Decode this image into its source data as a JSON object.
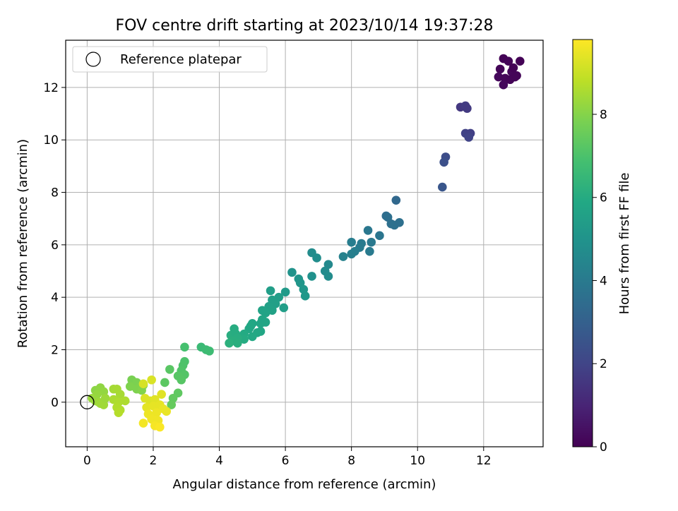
{
  "chart_data": {
    "type": "scatter",
    "title": "FOV centre drift starting at 2023/10/14 19:37:28",
    "xlabel": "Angular distance from reference (arcmin)",
    "ylabel": "Rotation from reference (arcmin)",
    "xlim": [
      -0.65,
      13.8
    ],
    "ylim": [
      -1.7,
      13.8
    ],
    "xticks": [
      "0",
      "2",
      "4",
      "6",
      "8",
      "10",
      "12"
    ],
    "yticks": [
      "0",
      "2",
      "4",
      "6",
      "8",
      "10",
      "12"
    ],
    "grid": true,
    "legend": {
      "position": "top-left",
      "entries": [
        "Reference platepar"
      ]
    },
    "reference_point": {
      "x": 0,
      "y": 0
    },
    "colorbar": {
      "label": "Hours from first FF file",
      "range": [
        0,
        9.8
      ],
      "ticks": [
        "0",
        "2",
        "4",
        "6",
        "8"
      ],
      "colormap": "viridis"
    },
    "series": [
      {
        "points": [
          {
            "x": 12.6,
            "y": 13.1,
            "h": 0.05
          },
          {
            "x": 12.75,
            "y": 13.0,
            "h": 0.1
          },
          {
            "x": 13.1,
            "y": 13.0,
            "h": 0.05
          },
          {
            "x": 12.5,
            "y": 12.7,
            "h": 0.1
          },
          {
            "x": 12.85,
            "y": 12.6,
            "h": 0.15
          },
          {
            "x": 12.95,
            "y": 12.4,
            "h": 0.1
          },
          {
            "x": 12.45,
            "y": 12.4,
            "h": 0.2
          },
          {
            "x": 12.65,
            "y": 12.35,
            "h": 0.15
          },
          {
            "x": 12.8,
            "y": 12.3,
            "h": 0.1
          },
          {
            "x": 12.6,
            "y": 12.1,
            "h": 0.2
          },
          {
            "x": 12.9,
            "y": 12.75,
            "h": 0.05
          },
          {
            "x": 13.0,
            "y": 12.45,
            "h": 0.1
          },
          {
            "x": 11.3,
            "y": 11.25,
            "h": 1.6
          },
          {
            "x": 11.45,
            "y": 11.3,
            "h": 1.7
          },
          {
            "x": 11.5,
            "y": 11.2,
            "h": 1.65
          },
          {
            "x": 11.45,
            "y": 10.25,
            "h": 1.9
          },
          {
            "x": 11.6,
            "y": 10.25,
            "h": 1.85
          },
          {
            "x": 11.55,
            "y": 10.1,
            "h": 1.95
          },
          {
            "x": 10.85,
            "y": 9.35,
            "h": 2.3
          },
          {
            "x": 10.8,
            "y": 9.15,
            "h": 2.4
          },
          {
            "x": 10.75,
            "y": 8.2,
            "h": 2.6
          },
          {
            "x": 9.35,
            "y": 7.7,
            "h": 3.3
          },
          {
            "x": 9.05,
            "y": 7.1,
            "h": 3.5
          },
          {
            "x": 9.1,
            "y": 7.05,
            "h": 3.55
          },
          {
            "x": 9.2,
            "y": 6.8,
            "h": 3.6
          },
          {
            "x": 9.3,
            "y": 6.75,
            "h": 3.65
          },
          {
            "x": 9.45,
            "y": 6.85,
            "h": 3.6
          },
          {
            "x": 8.5,
            "y": 6.55,
            "h": 3.9
          },
          {
            "x": 8.85,
            "y": 6.35,
            "h": 3.8
          },
          {
            "x": 8.0,
            "y": 6.1,
            "h": 4.1
          },
          {
            "x": 8.6,
            "y": 6.1,
            "h": 3.95
          },
          {
            "x": 8.3,
            "y": 6.05,
            "h": 4.0
          },
          {
            "x": 8.25,
            "y": 5.9,
            "h": 4.05
          },
          {
            "x": 8.1,
            "y": 5.75,
            "h": 4.15
          },
          {
            "x": 8.55,
            "y": 5.75,
            "h": 4.0
          },
          {
            "x": 8.0,
            "y": 5.65,
            "h": 4.2
          },
          {
            "x": 7.75,
            "y": 5.55,
            "h": 4.3
          },
          {
            "x": 6.8,
            "y": 5.7,
            "h": 4.7
          },
          {
            "x": 6.95,
            "y": 5.5,
            "h": 4.75
          },
          {
            "x": 7.3,
            "y": 5.25,
            "h": 4.6
          },
          {
            "x": 7.2,
            "y": 5.0,
            "h": 4.65
          },
          {
            "x": 7.3,
            "y": 4.8,
            "h": 4.7
          },
          {
            "x": 6.8,
            "y": 4.8,
            "h": 4.9
          },
          {
            "x": 6.2,
            "y": 4.95,
            "h": 5.0
          },
          {
            "x": 6.4,
            "y": 4.7,
            "h": 5.05
          },
          {
            "x": 6.45,
            "y": 4.55,
            "h": 5.1
          },
          {
            "x": 6.55,
            "y": 4.3,
            "h": 5.15
          },
          {
            "x": 6.6,
            "y": 4.05,
            "h": 5.2
          },
          {
            "x": 6.0,
            "y": 4.2,
            "h": 5.3
          },
          {
            "x": 5.8,
            "y": 4.0,
            "h": 5.4
          },
          {
            "x": 5.55,
            "y": 4.25,
            "h": 5.45
          },
          {
            "x": 5.6,
            "y": 3.9,
            "h": 5.5
          },
          {
            "x": 5.7,
            "y": 3.75,
            "h": 5.5
          },
          {
            "x": 5.5,
            "y": 3.65,
            "h": 5.55
          },
          {
            "x": 5.6,
            "y": 3.5,
            "h": 5.6
          },
          {
            "x": 5.95,
            "y": 3.6,
            "h": 5.45
          },
          {
            "x": 5.3,
            "y": 3.5,
            "h": 5.65
          },
          {
            "x": 5.4,
            "y": 3.4,
            "h": 5.65
          },
          {
            "x": 5.3,
            "y": 3.15,
            "h": 5.7
          },
          {
            "x": 5.25,
            "y": 3.0,
            "h": 5.75
          },
          {
            "x": 5.4,
            "y": 3.05,
            "h": 5.75
          },
          {
            "x": 5.0,
            "y": 3.0,
            "h": 5.8
          },
          {
            "x": 4.95,
            "y": 2.9,
            "h": 5.85
          },
          {
            "x": 4.9,
            "y": 2.8,
            "h": 5.85
          },
          {
            "x": 5.25,
            "y": 2.7,
            "h": 5.8
          },
          {
            "x": 5.15,
            "y": 2.65,
            "h": 5.85
          },
          {
            "x": 5.0,
            "y": 2.5,
            "h": 5.9
          },
          {
            "x": 4.75,
            "y": 2.6,
            "h": 5.95
          },
          {
            "x": 4.75,
            "y": 2.4,
            "h": 6.0
          },
          {
            "x": 4.45,
            "y": 2.8,
            "h": 6.05
          },
          {
            "x": 4.35,
            "y": 2.55,
            "h": 6.1
          },
          {
            "x": 4.5,
            "y": 2.6,
            "h": 6.05
          },
          {
            "x": 4.55,
            "y": 2.45,
            "h": 6.1
          },
          {
            "x": 4.4,
            "y": 2.35,
            "h": 6.15
          },
          {
            "x": 4.3,
            "y": 2.25,
            "h": 6.2
          },
          {
            "x": 4.55,
            "y": 2.25,
            "h": 6.15
          },
          {
            "x": 3.45,
            "y": 2.1,
            "h": 6.6
          },
          {
            "x": 3.6,
            "y": 2.0,
            "h": 6.65
          },
          {
            "x": 3.7,
            "y": 1.95,
            "h": 6.7
          },
          {
            "x": 2.95,
            "y": 2.1,
            "h": 6.9
          },
          {
            "x": 2.95,
            "y": 1.55,
            "h": 7.0
          },
          {
            "x": 2.9,
            "y": 1.4,
            "h": 7.05
          },
          {
            "x": 2.85,
            "y": 1.2,
            "h": 7.1
          },
          {
            "x": 2.95,
            "y": 1.05,
            "h": 7.15
          },
          {
            "x": 2.75,
            "y": 1.0,
            "h": 7.2
          },
          {
            "x": 2.85,
            "y": 0.85,
            "h": 7.2
          },
          {
            "x": 2.5,
            "y": 1.25,
            "h": 7.25
          },
          {
            "x": 2.35,
            "y": 0.75,
            "h": 7.3
          },
          {
            "x": 2.75,
            "y": 0.35,
            "h": 7.35
          },
          {
            "x": 2.6,
            "y": 0.15,
            "h": 7.4
          },
          {
            "x": 2.55,
            "y": -0.1,
            "h": 7.45
          },
          {
            "x": 1.35,
            "y": 0.85,
            "h": 7.8
          },
          {
            "x": 1.5,
            "y": 0.75,
            "h": 7.85
          },
          {
            "x": 1.3,
            "y": 0.6,
            "h": 7.9
          },
          {
            "x": 1.5,
            "y": 0.5,
            "h": 7.9
          },
          {
            "x": 1.65,
            "y": 0.45,
            "h": 7.95
          },
          {
            "x": 1.7,
            "y": 0.65,
            "h": 7.9
          },
          {
            "x": 0.25,
            "y": 0.45,
            "h": 8.1
          },
          {
            "x": 0.4,
            "y": 0.55,
            "h": 8.15
          },
          {
            "x": 0.5,
            "y": 0.4,
            "h": 8.2
          },
          {
            "x": 0.3,
            "y": 0.3,
            "h": 8.25
          },
          {
            "x": 0.15,
            "y": 0.15,
            "h": 8.3
          },
          {
            "x": 0.25,
            "y": 0.05,
            "h": 8.3
          },
          {
            "x": 0.35,
            "y": 0.0,
            "h": 8.35
          },
          {
            "x": 0.5,
            "y": -0.1,
            "h": 8.4
          },
          {
            "x": 0.4,
            "y": -0.05,
            "h": 8.4
          },
          {
            "x": 0.55,
            "y": 0.15,
            "h": 8.35
          },
          {
            "x": 0.8,
            "y": 0.5,
            "h": 8.45
          },
          {
            "x": 0.9,
            "y": 0.5,
            "h": 8.5
          },
          {
            "x": 1.0,
            "y": 0.3,
            "h": 8.5
          },
          {
            "x": 0.8,
            "y": 0.1,
            "h": 8.55
          },
          {
            "x": 0.95,
            "y": 0.0,
            "h": 8.6
          },
          {
            "x": 1.15,
            "y": 0.05,
            "h": 8.6
          },
          {
            "x": 0.9,
            "y": -0.2,
            "h": 8.65
          },
          {
            "x": 1.0,
            "y": -0.3,
            "h": 8.65
          },
          {
            "x": 0.95,
            "y": -0.4,
            "h": 8.7
          },
          {
            "x": 1.7,
            "y": 0.7,
            "h": 9.2
          },
          {
            "x": 1.95,
            "y": 0.85,
            "h": 9.25
          },
          {
            "x": 1.75,
            "y": 0.15,
            "h": 9.3
          },
          {
            "x": 1.9,
            "y": 0.05,
            "h": 9.3
          },
          {
            "x": 2.05,
            "y": 0.1,
            "h": 9.35
          },
          {
            "x": 2.25,
            "y": 0.3,
            "h": 9.35
          },
          {
            "x": 1.8,
            "y": -0.2,
            "h": 9.4
          },
          {
            "x": 2.0,
            "y": -0.15,
            "h": 9.45
          },
          {
            "x": 2.2,
            "y": -0.1,
            "h": 9.45
          },
          {
            "x": 2.3,
            "y": -0.25,
            "h": 9.5
          },
          {
            "x": 2.4,
            "y": -0.35,
            "h": 9.5
          },
          {
            "x": 2.1,
            "y": -0.4,
            "h": 9.55
          },
          {
            "x": 1.85,
            "y": -0.45,
            "h": 9.55
          },
          {
            "x": 1.95,
            "y": -0.65,
            "h": 9.6
          },
          {
            "x": 2.15,
            "y": -0.7,
            "h": 9.6
          },
          {
            "x": 1.7,
            "y": -0.8,
            "h": 9.65
          },
          {
            "x": 2.05,
            "y": -0.9,
            "h": 9.7
          },
          {
            "x": 2.2,
            "y": -0.95,
            "h": 9.75
          }
        ]
      }
    ]
  }
}
